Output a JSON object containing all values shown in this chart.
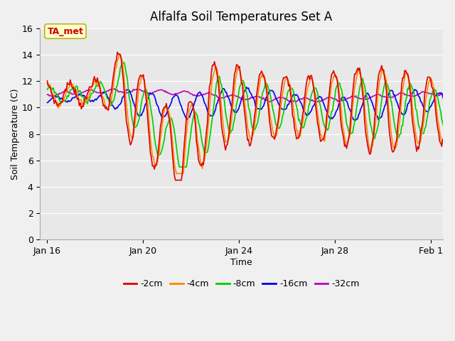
{
  "title": "Alfalfa Soil Temperatures Set A",
  "xlabel": "Time",
  "ylabel": "Soil Temperature (C)",
  "ylim": [
    0,
    16
  ],
  "yticks": [
    0,
    2,
    4,
    6,
    8,
    10,
    12,
    14,
    16
  ],
  "fig_bg_color": "#f0f0f0",
  "plot_bg_color": "#e8e8e8",
  "annotation_label": "TA_met",
  "annotation_bg": "#ffffcc",
  "annotation_text_color": "#cc0000",
  "annotation_edge_color": "#aaaa00",
  "legend_labels": [
    "-2cm",
    "-4cm",
    "-8cm",
    "-16cm",
    "-32cm"
  ],
  "line_colors": [
    "#dd0000",
    "#ff8800",
    "#00cc00",
    "#0000ee",
    "#bb00bb"
  ],
  "xtick_labels": [
    "Jan 16",
    "Jan 20",
    "Jan 24",
    "Jan 28",
    "Feb 1"
  ],
  "xtick_positions": [
    16,
    20,
    24,
    28,
    32
  ],
  "xlim": [
    15.7,
    32.5
  ],
  "grid_color": "#ffffff",
  "title_fontsize": 12,
  "axis_fontsize": 9,
  "tick_fontsize": 9
}
